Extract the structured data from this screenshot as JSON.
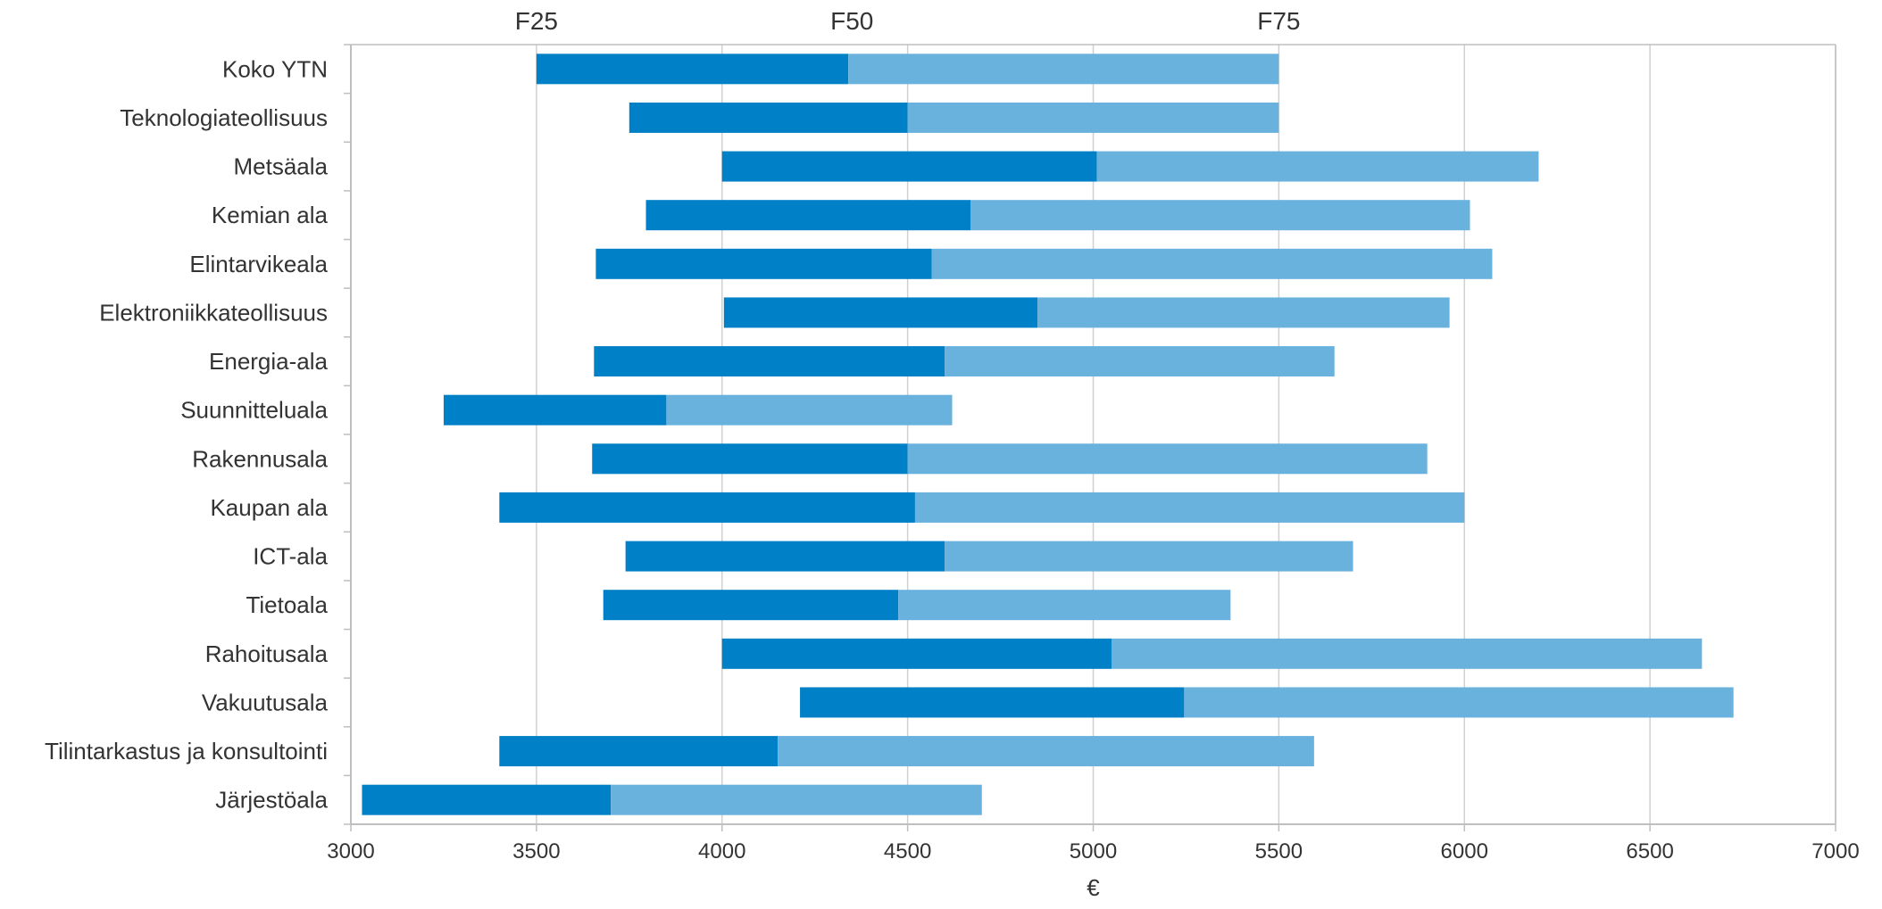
{
  "chart_data": {
    "type": "bar",
    "orientation": "horizontal",
    "stacked": true,
    "xlabel": "€",
    "xlim": [
      3000,
      7000
    ],
    "xticks": [
      3000,
      3500,
      4000,
      4500,
      5000,
      5500,
      6000,
      6500,
      7000
    ],
    "grid": true,
    "annotations": [
      {
        "label": "F25",
        "x": 3500
      },
      {
        "label": "F50",
        "x": 4350
      },
      {
        "label": "F75",
        "x": 5500
      }
    ],
    "colors": {
      "lower": "#0080c6",
      "upper": "#6ab2de",
      "grid": "#d0d0d0",
      "axis": "#bfbfbf"
    },
    "categories": [
      "Koko YTN",
      "Teknologiateollisuus",
      "Metsäala",
      "Kemian ala",
      "Elintarvikeala",
      "Elektroniikkateollisuus",
      "Energia-ala",
      "Suunnitteluala",
      "Rakennusala",
      "Kaupan ala",
      "ICT-ala",
      "Tietoala",
      "Rahoitusala",
      "Vakuutusala",
      "Tilintarkastus ja konsultointi",
      "Järjestöala"
    ],
    "series": [
      {
        "key": "lower",
        "start": [
          3500,
          3750,
          4000,
          3795,
          3660,
          4005,
          3655,
          3250,
          3650,
          3400,
          3740,
          3680,
          4000,
          4210,
          3400,
          3030
        ],
        "end": [
          4340,
          4500,
          5010,
          4670,
          4565,
          4850,
          4600,
          3850,
          4500,
          4520,
          4600,
          4475,
          5050,
          5245,
          4150,
          3700
        ]
      },
      {
        "key": "upper",
        "start": [
          4340,
          4500,
          5010,
          4670,
          4565,
          4850,
          4600,
          3850,
          4500,
          4520,
          4600,
          4475,
          5050,
          5245,
          4150,
          3700
        ],
        "end": [
          5500,
          5500,
          6200,
          6015,
          6075,
          5960,
          5650,
          4620,
          5900,
          6000,
          5700,
          5370,
          6640,
          6725,
          5595,
          4700
        ]
      }
    ]
  }
}
